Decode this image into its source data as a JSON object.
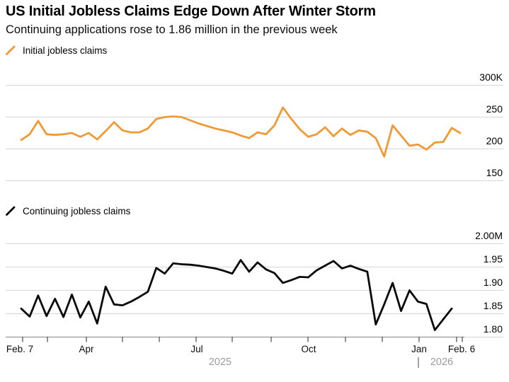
{
  "header": {
    "title": "US Initial Jobless Claims Edge Down After Winter Storm",
    "subtitle": "Continuing applications rose to 1.86 million in the previous week"
  },
  "colors": {
    "accent_orange": "#F09A35",
    "line_black": "#0A0A0A",
    "gridline": "#D5D5D5",
    "axis_line": "#979797",
    "tick_mark": "#4A4A4A",
    "year_gray": "#9B9B9B"
  },
  "xaxis": {
    "labels": [
      "Feb. 7",
      "Apr",
      "Jul",
      "Oct",
      "Jan",
      "Feb. 6"
    ],
    "years": [
      "2025",
      "2026"
    ]
  },
  "chart_data": [
    {
      "type": "line",
      "title": "Initial jobless claims",
      "legend": "Initial jobless claims",
      "frequency": "weekly",
      "x_range": [
        "Feb. 7 2025",
        "Feb. 6 2026"
      ],
      "x_tick_labels": [
        "Feb. 7",
        "Apr",
        "Jul",
        "Oct",
        "Jan",
        "Feb. 6"
      ],
      "unit": "thousands",
      "ylim": [
        150,
        300
      ],
      "ytick_values": [
        300,
        250,
        200,
        150
      ],
      "ytick_labels": [
        "300K",
        "250",
        "200",
        "150"
      ],
      "grid": "horizontal",
      "legend_position": "top-left",
      "line_color": "#F09A35",
      "values": [
        214,
        223,
        244,
        223,
        222,
        223,
        225,
        219,
        225,
        215,
        228,
        242,
        229,
        226,
        226,
        232,
        247,
        250,
        251,
        250,
        245,
        240,
        236,
        232,
        229,
        226,
        221,
        217,
        226,
        223,
        237,
        265,
        247,
        231,
        219,
        223,
        234,
        220,
        232,
        222,
        229,
        227,
        217,
        188,
        237,
        221,
        205,
        207,
        199,
        210,
        211,
        233,
        225
      ]
    },
    {
      "type": "line",
      "title": "Continuing jobless claims",
      "legend": "Continuing jobless claims",
      "frequency": "weekly",
      "unit": "millions",
      "ylim": [
        1.8,
        2.0
      ],
      "ytick_values": [
        2.0,
        1.95,
        1.9,
        1.85,
        1.8
      ],
      "ytick_labels": [
        "2.00M",
        "1.95",
        "1.90",
        "1.85",
        "1.80"
      ],
      "grid": "horizontal",
      "legend_position": "top-left",
      "line_color": "#0A0A0A",
      "values": [
        1.861,
        1.844,
        1.889,
        1.845,
        1.882,
        1.843,
        1.891,
        1.842,
        1.876,
        1.829,
        1.908,
        1.87,
        1.868,
        1.876,
        1.886,
        1.897,
        1.948,
        1.936,
        1.958,
        1.956,
        1.955,
        1.953,
        1.95,
        1.947,
        1.942,
        1.936,
        1.965,
        1.94,
        1.96,
        1.945,
        1.937,
        1.916,
        1.922,
        1.929,
        1.928,
        1.943,
        1.953,
        1.963,
        1.947,
        1.953,
        1.946,
        1.94,
        1.827,
        1.87,
        1.916,
        1.856,
        1.9,
        1.876,
        1.871,
        1.815,
        1.838,
        1.861
      ]
    }
  ]
}
